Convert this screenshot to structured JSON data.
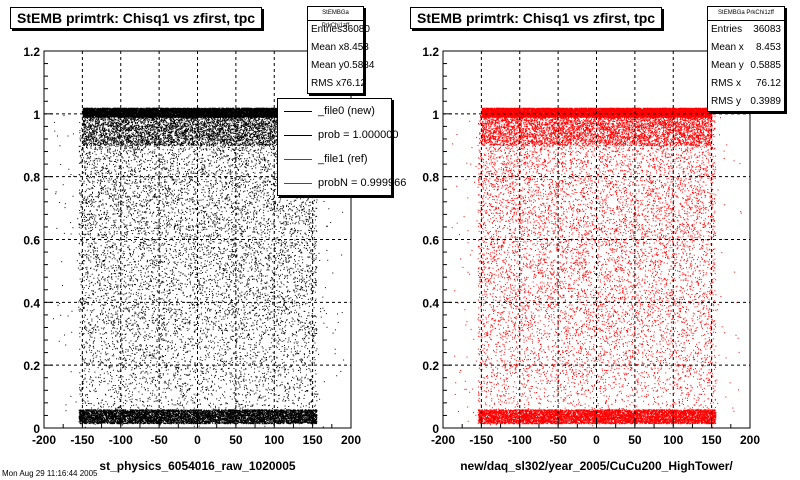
{
  "chart_data": [
    {
      "type": "scatter",
      "title": "StEMB primtrk: Chisq1 vs zfirst, tpc",
      "xlabel": "st_physics_6054016_raw_1020005",
      "ylabel": "",
      "xlim": [
        -200,
        200
      ],
      "ylim": [
        0,
        1.2
      ],
      "xticks": [
        -200,
        -150,
        -100,
        -50,
        0,
        50,
        100,
        150,
        200
      ],
      "yticks": [
        0,
        0.2,
        0.4,
        0.6,
        0.8,
        1,
        1.2
      ],
      "grid": true,
      "marker_color": "#000000",
      "stats": {
        "header": "StEMBGa PrkChi1zff",
        "rows": [
          {
            "label": "Entries",
            "value": "36080"
          },
          {
            "label": "Mean x",
            "value": "8.453"
          },
          {
            "label": "Mean y",
            "value": "0.5884"
          },
          {
            "label": "RMS x",
            "value": "76.12"
          }
        ]
      },
      "legend": {
        "placement": "top-right",
        "entries": [
          {
            "label": "_file0 (new)",
            "color": "#000000"
          },
          {
            "label": "prob = 1.000000",
            "color": "#000000"
          },
          {
            "label": "_file1 (ref)",
            "color": "#ff0000"
          },
          {
            "label": "probN = 0.999966",
            "color": "#ff0000"
          }
        ]
      }
    },
    {
      "type": "scatter",
      "title": "StEMB primtrk: Chisq1 vs zfirst, tpc",
      "xlabel": "new/daq_sl302/year_2005/CuCu200_HighTower/",
      "ylabel": "",
      "xlim": [
        -200,
        200
      ],
      "ylim": [
        0,
        1.2
      ],
      "xticks": [
        -200,
        -150,
        -100,
        -50,
        0,
        50,
        100,
        150,
        200
      ],
      "yticks": [
        0,
        0.2,
        0.4,
        0.6,
        0.8,
        1,
        1.2
      ],
      "grid": true,
      "marker_color": "#ff0000",
      "stats": {
        "header": "StEMBGa PrkChi1zff",
        "rows": [
          {
            "label": "Entries",
            "value": "36083"
          },
          {
            "label": "Mean x",
            "value": "8.453"
          },
          {
            "label": "Mean y",
            "value": "0.5885"
          },
          {
            "label": "RMS x",
            "value": "76.12"
          },
          {
            "label": "RMS y",
            "value": "0.3989"
          }
        ]
      }
    }
  ],
  "footer": "Mon Aug 29 11:16:44 2005"
}
